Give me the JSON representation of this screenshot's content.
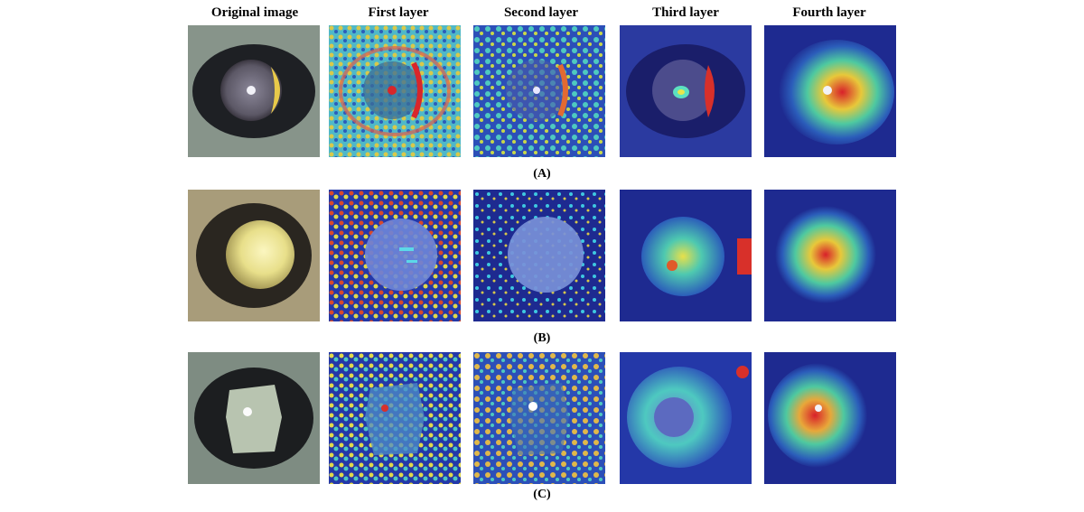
{
  "figure": {
    "column_headers": [
      "Original image",
      "First layer",
      "Second layer",
      "Third layer",
      "Fourth layer"
    ],
    "rows": [
      {
        "label": "(A)"
      },
      {
        "label": "(B)"
      },
      {
        "label": "(C)"
      }
    ]
  }
}
